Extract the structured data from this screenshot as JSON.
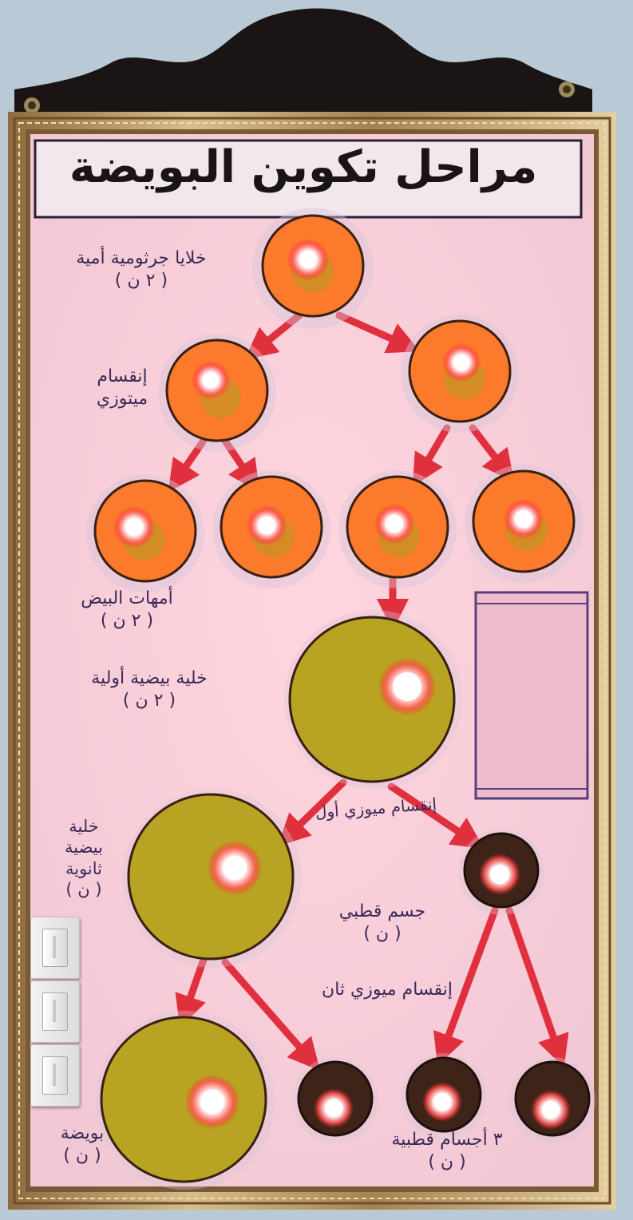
{
  "poster": {
    "title": "مراحل تكوين البويضة",
    "labels": {
      "oogonia_origin": {
        "line1": "خلايا جرثومية أمية",
        "line2": "( ٢ ن )"
      },
      "mitosis": {
        "line1": "إنقسام",
        "line2": "ميتوزي"
      },
      "oogonia": {
        "line1": "أمهات البيض",
        "line2": "( ٢ ن )"
      },
      "primary_oocyte": {
        "line1": "خلية بيضية أولية",
        "line2": "( ٢ ن )"
      },
      "meiosis_1": "إنقسام ميوزي أول",
      "secondary_oocyte": {
        "line1": "خلية",
        "line2": "بيضية",
        "line3": "ثانوية",
        "line4": "( ن )"
      },
      "polar_body": {
        "line1": "جسم قطبي",
        "line2": "( ن )"
      },
      "meiosis_2": "إنقسام ميوزي ثان",
      "ovum": {
        "line1": "بويضة",
        "line2": "( ن )"
      },
      "polar_bodies_3": {
        "line1": "٣ أجسام قطبية",
        "line2": "( ن )"
      }
    },
    "colors": {
      "board": "#f6dbe4",
      "orange_cell": "#fb7a2c",
      "olive_cell": "#b8a322",
      "polar_cell": "#3e2418",
      "arrow": "#e0303e",
      "label_ink": "#3a2a58",
      "frame": "#b89763"
    }
  }
}
